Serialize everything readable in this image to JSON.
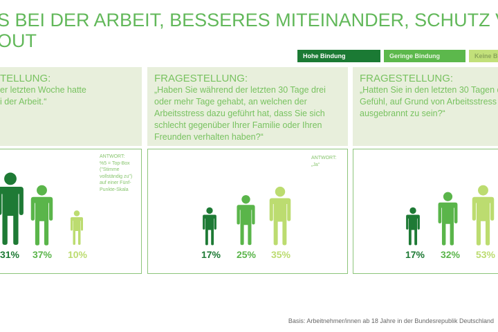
{
  "title": {
    "line1": "S BEI DER ARBEIT, BESSERES MITEINANDER, SCHUTZ V",
    "line2": "OUT"
  },
  "legend": [
    {
      "label": "Hohe Bindung",
      "color": "#1b7a34"
    },
    {
      "label": "Geringe Bindung",
      "color": "#5cb84c"
    },
    {
      "label": "Keine Bindung",
      "color": "#c2e07a"
    }
  ],
  "panels": [
    {
      "heading": "TELLUNG:",
      "question": "er letzten Woche hatte\ni der Arbeit.“",
      "answer": "ANTWORT:\n%5 = Top-Box\n(\"Stimme\nvollständig zu\")\nauf einer Fünf-\nPunkte-Skala",
      "values": [
        "31%",
        "37%",
        "10%"
      ]
    },
    {
      "heading": "FRAGESTELLUNG:",
      "question": "„Haben Sie während der letzten 30 Tage drei\noder mehr Tage gehabt, an welchen der\nArbeitsstress dazu geführt hat, dass Sie sich\nschlecht gegenüber Ihrer Familie oder Ihren\nFreunden verhalten haben?“",
      "answer": "ANTWORT:\n„Ja“",
      "values": [
        "17%",
        "25%",
        "35%"
      ]
    },
    {
      "heading": "FRAGESTELLUNG:",
      "question": "„Hatten Sie in den letzten 30 Tagen das\nGefühl, auf Grund von Arbeitsstress\nausgebrannt zu sein?“",
      "answer": "",
      "values": [
        "17%",
        "32%",
        "53%"
      ]
    }
  ],
  "footer": "Basis: Arbeitnehmer/innen ab 18 Jahre in der Bundesrepublik Deutschland"
}
